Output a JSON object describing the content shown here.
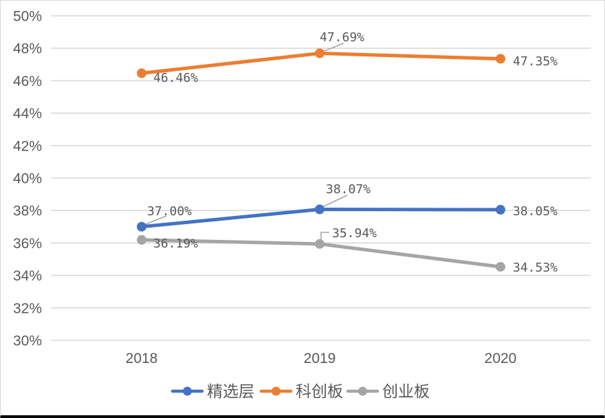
{
  "figure": {
    "background": "#ffffff",
    "frame_border_color": "#d9d9d9",
    "bottom_bar_color": "#080808"
  },
  "chart_data": {
    "type": "line",
    "title": "",
    "categories": [
      "2018",
      "2019",
      "2020"
    ],
    "series": [
      {
        "name": "精选层",
        "color": "#4472C4",
        "values": [
          37.0,
          38.07,
          38.05
        ],
        "point_labels": [
          "37.00%",
          "38.07%",
          "38.05%"
        ]
      },
      {
        "name": "科创板",
        "color": "#ED7D31",
        "values": [
          46.46,
          47.69,
          47.35
        ],
        "point_labels": [
          "46.46%",
          "47.69%",
          "47.35%"
        ]
      },
      {
        "name": "创业板",
        "color": "#A5A5A5",
        "values": [
          36.19,
          35.94,
          34.53
        ],
        "point_labels": [
          "36.19%",
          "35.94%",
          "34.53%"
        ]
      }
    ],
    "y_axis": {
      "min": 30,
      "max": 50,
      "step": 2,
      "tick_labels": [
        "50%",
        "48%",
        "46%",
        "44%",
        "42%",
        "40%",
        "38%",
        "36%",
        "34%",
        "32%",
        "30%"
      ]
    },
    "xlabel": "",
    "ylabel": "",
    "grid": true,
    "legend_position": "bottom",
    "legend_entries": [
      "精选层",
      "科创板",
      "创业板"
    ],
    "colors": {
      "axis_text": "#595959",
      "data_label_text": "#595959",
      "gridline": "#d9d9d9",
      "leader_line": "#a6a6a6"
    }
  }
}
